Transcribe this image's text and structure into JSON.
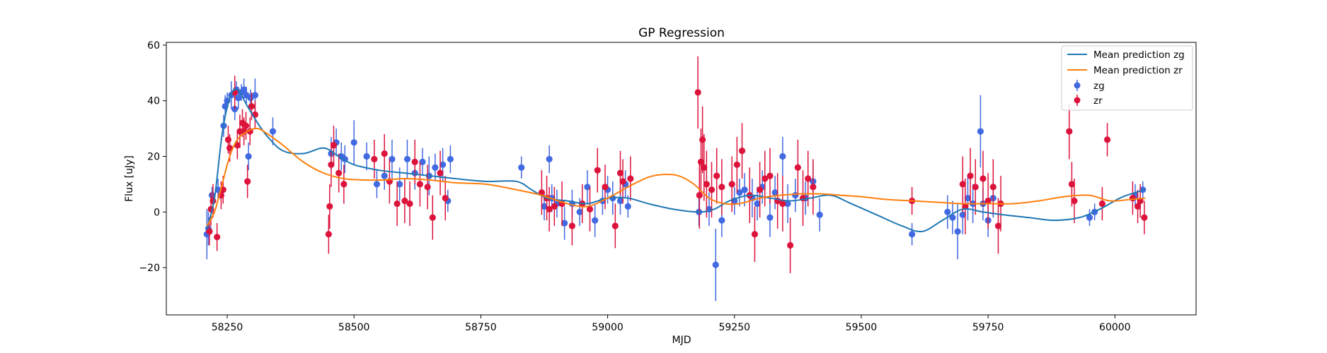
{
  "chart_data": {
    "type": "scatter",
    "title": "GP Regression",
    "xlabel": "MJD",
    "ylabel": "Flux [uJy]",
    "xlim": [
      58130,
      60160
    ],
    "ylim": [
      -37,
      61
    ],
    "xticks": [
      58250,
      58500,
      58750,
      59000,
      59250,
      59500,
      59750,
      60000
    ],
    "yticks": [
      -20,
      0,
      20,
      40,
      60
    ],
    "grid": false,
    "legend_position": "top-right",
    "legend": [
      "Mean prediction zg",
      "Mean prediction zr",
      "zg",
      "zr"
    ],
    "colors": {
      "mean_zg": "#1f77b4",
      "mean_zr": "#ff7f0e",
      "zg": "#4169e1",
      "zr": "#dc143c"
    },
    "series": [
      {
        "name": "Mean prediction zg",
        "kind": "line",
        "x": [
          58210,
          58225,
          58240,
          58255,
          58270,
          58290,
          58310,
          58330,
          58360,
          58400,
          58440,
          58470,
          58500,
          58550,
          58600,
          58650,
          58700,
          58760,
          58820,
          58850,
          58880,
          58920,
          58960,
          59000,
          59040,
          59080,
          59130,
          59180,
          59210,
          59240,
          59280,
          59320,
          59360,
          59400,
          59440,
          59480,
          59530,
          59580,
          59620,
          59660,
          59700,
          59740,
          59780,
          59830,
          59880,
          59930,
          59970,
          60010,
          60040,
          60060
        ],
        "y": [
          -6,
          5,
          28,
          41,
          44,
          38,
          32,
          27,
          22,
          21,
          23,
          20,
          17,
          15,
          14,
          13,
          12,
          11,
          11,
          8,
          5,
          4,
          3,
          5,
          5,
          3,
          1,
          0,
          1,
          4,
          6,
          5,
          4,
          5,
          6,
          3,
          -1,
          -5,
          -7,
          -3,
          1,
          0,
          -1,
          -2,
          -3,
          -2,
          1,
          5,
          7,
          8
        ]
      },
      {
        "name": "Mean prediction zr",
        "kind": "line",
        "x": [
          58210,
          58225,
          58240,
          58255,
          58270,
          58290,
          58310,
          58330,
          58360,
          58400,
          58440,
          58480,
          58520,
          58560,
          58600,
          58650,
          58700,
          58760,
          58820,
          58870,
          58920,
          58960,
          59000,
          59040,
          59080,
          59110,
          59140,
          59170,
          59200,
          59230,
          59260,
          59300,
          59340,
          59380,
          59420,
          59460,
          59500,
          59550,
          59600,
          59650,
          59700,
          59750,
          59800,
          59850,
          59900,
          59950,
          59990,
          60030,
          60060
        ],
        "y": [
          -5,
          0,
          10,
          20,
          26,
          29,
          30,
          28,
          24,
          18,
          14,
          12,
          11.5,
          11.5,
          12,
          11.5,
          10.5,
          10,
          8,
          6,
          3,
          2,
          5,
          9,
          12.5,
          13.5,
          13,
          10,
          5,
          3,
          3,
          5,
          6,
          6.5,
          6.5,
          6,
          5.5,
          4.5,
          4,
          3.5,
          3,
          3,
          3,
          4,
          5.5,
          6,
          4,
          4.5,
          5
        ]
      },
      {
        "name": "zg",
        "kind": "errorbar",
        "x": [
          58210,
          58213,
          58220,
          58232,
          58243,
          58246,
          58250,
          58258,
          58265,
          58268,
          58272,
          58278,
          58283,
          58288,
          58292,
          58296,
          58305,
          58340,
          58455,
          58465,
          58475,
          58482,
          58500,
          58525,
          58545,
          58560,
          58575,
          58590,
          58605,
          58620,
          58635,
          58648,
          58660,
          58675,
          58685,
          58690,
          58830,
          58875,
          58885,
          58890,
          58900,
          58915,
          58930,
          58945,
          58960,
          58975,
          58990,
          59000,
          59010,
          59025,
          59035,
          59040,
          59180,
          59200,
          59213,
          59225,
          59250,
          59260,
          59270,
          59285,
          59295,
          59305,
          59320,
          59330,
          59345,
          59355,
          59370,
          59390,
          59405,
          59418,
          59600,
          59670,
          59680,
          59690,
          59700,
          59710,
          59720,
          59735,
          59740,
          59750,
          59760,
          59950,
          59960,
          60040,
          60055
        ],
        "y": [
          -8,
          -6,
          6,
          8,
          31,
          38,
          40,
          42,
          37,
          44,
          41,
          43,
          44,
          42,
          20,
          41,
          42,
          29,
          21,
          25,
          20,
          19,
          25,
          20,
          10,
          13,
          19,
          10,
          19,
          14,
          18,
          13,
          16,
          17,
          4,
          19,
          16,
          2,
          19,
          5,
          3,
          -4,
          3,
          0,
          9,
          -3,
          4,
          8,
          5,
          4,
          10,
          2,
          0,
          1,
          -19,
          -3,
          4,
          7,
          8,
          5,
          3,
          9,
          -2,
          7,
          20,
          3,
          6,
          5,
          11,
          -1,
          -8,
          0,
          -2,
          -7,
          -1,
          5,
          3,
          29,
          3,
          -3,
          5,
          -2,
          0,
          6,
          8
        ],
        "err": [
          9,
          6,
          3,
          4,
          4,
          4,
          3,
          5,
          4,
          3,
          4,
          3,
          4,
          3,
          5,
          3,
          6,
          5,
          6,
          5,
          5,
          5,
          8,
          5,
          5,
          5,
          7,
          6,
          7,
          6,
          5,
          7,
          5,
          6,
          4,
          5,
          4,
          5,
          5,
          5,
          5,
          6,
          5,
          5,
          6,
          6,
          5,
          5,
          6,
          5,
          5,
          4,
          5,
          6,
          13,
          6,
          5,
          5,
          6,
          7,
          6,
          6,
          7,
          6,
          7,
          7,
          6,
          6,
          7,
          6,
          4,
          6,
          6,
          10,
          7,
          8,
          7,
          13,
          6,
          6,
          7,
          3,
          3,
          4,
          3
        ]
      },
      {
        "name": "zr",
        "kind": "errorbar",
        "x": [
          58215,
          58218,
          58222,
          58230,
          58238,
          58242,
          58252,
          58255,
          58265,
          58270,
          58275,
          58280,
          58283,
          58287,
          58290,
          58295,
          58298,
          58305,
          58450,
          58452,
          58455,
          58460,
          58470,
          58480,
          58540,
          58560,
          58570,
          58585,
          58600,
          58610,
          58620,
          58630,
          58645,
          58655,
          58670,
          58680,
          58870,
          58880,
          58885,
          58895,
          58910,
          58930,
          58950,
          58965,
          58980,
          58995,
          59015,
          59025,
          59030,
          59045,
          59178,
          59181,
          59184,
          59187,
          59190,
          59195,
          59205,
          59215,
          59225,
          59245,
          59255,
          59265,
          59280,
          59290,
          59300,
          59310,
          59320,
          59335,
          59345,
          59360,
          59375,
          59385,
          59395,
          59405,
          59700,
          59705,
          59715,
          59725,
          59740,
          59750,
          59760,
          59770,
          59775,
          59600,
          59910,
          59915,
          59920,
          59975,
          59985,
          60035,
          60045,
          60050,
          60058
        ],
        "y": [
          -7,
          1,
          4,
          -9,
          6,
          8,
          26,
          23,
          43,
          24,
          29,
          32,
          29,
          31,
          11,
          29,
          38,
          35,
          -8,
          2,
          17,
          24,
          14,
          10,
          19,
          21,
          11,
          3,
          4,
          3,
          18,
          10,
          9,
          -2,
          14,
          5,
          7,
          5,
          1,
          2,
          3,
          -5,
          3,
          1,
          15,
          9,
          -5,
          14,
          11,
          12,
          43,
          6,
          18,
          26,
          16,
          10,
          8,
          13,
          9,
          10,
          17,
          22,
          6,
          -8,
          8,
          12,
          13,
          4,
          3,
          -12,
          16,
          5,
          12,
          9,
          10,
          2,
          13,
          9,
          12,
          4,
          9,
          -5,
          3,
          4,
          29,
          10,
          4,
          3,
          26,
          5,
          2,
          4,
          -2
        ],
        "err": [
          5,
          6,
          6,
          5,
          5,
          5,
          5,
          5,
          6,
          5,
          6,
          5,
          5,
          5,
          6,
          5,
          5,
          5,
          7,
          8,
          8,
          7,
          7,
          7,
          7,
          7,
          8,
          8,
          8,
          8,
          8,
          8,
          8,
          8,
          8,
          8,
          8,
          8,
          8,
          7,
          8,
          7,
          7,
          8,
          8,
          8,
          8,
          8,
          8,
          8,
          13,
          12,
          12,
          12,
          12,
          12,
          10,
          10,
          10,
          10,
          10,
          10,
          10,
          10,
          10,
          10,
          10,
          10,
          10,
          10,
          10,
          10,
          10,
          10,
          10,
          10,
          10,
          10,
          10,
          10,
          10,
          10,
          10,
          5,
          10,
          8,
          8,
          6,
          6,
          6,
          6,
          6,
          6
        ]
      }
    ]
  }
}
